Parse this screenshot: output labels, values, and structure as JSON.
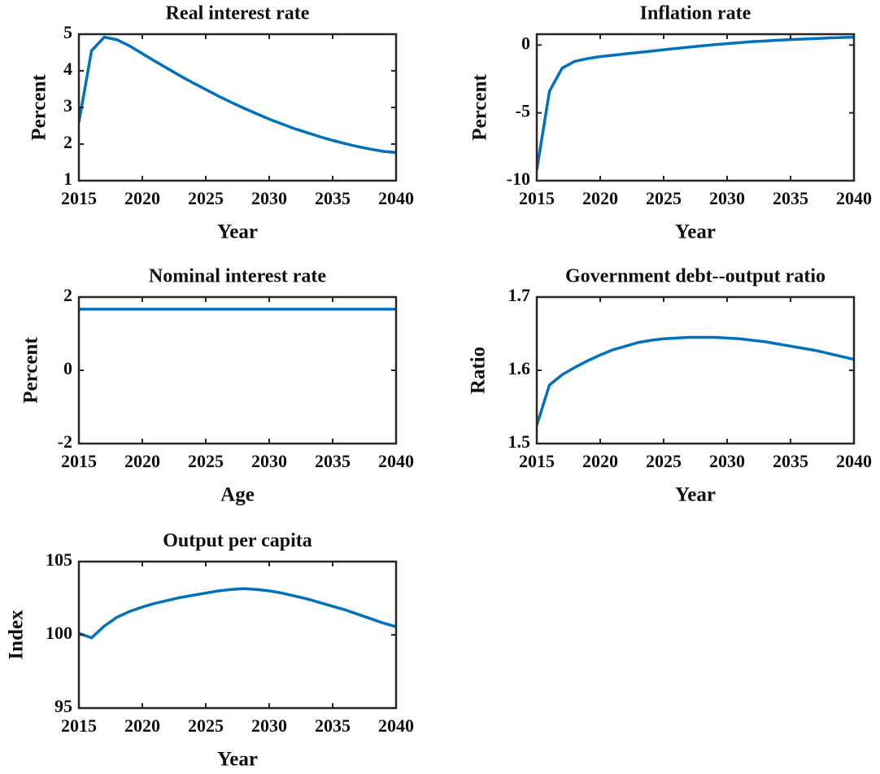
{
  "chart_data": [
    {
      "type": "line",
      "title": "Real interest rate",
      "x_label": "Year",
      "y_label": "Percent",
      "x": [
        2015,
        2016,
        2017,
        2018,
        2019,
        2020,
        2021,
        2022,
        2023,
        2024,
        2025,
        2026,
        2027,
        2028,
        2029,
        2030,
        2031,
        2032,
        2033,
        2034,
        2035,
        2036,
        2037,
        2038,
        2039,
        2040
      ],
      "series": [
        {
          "color": "#0072bd",
          "values": [
            2.6,
            4.55,
            4.92,
            4.85,
            4.68,
            4.47,
            4.26,
            4.06,
            3.86,
            3.67,
            3.49,
            3.31,
            3.14,
            2.98,
            2.83,
            2.68,
            2.55,
            2.42,
            2.31,
            2.2,
            2.1,
            2.01,
            1.93,
            1.86,
            1.8,
            1.77
          ]
        }
      ],
      "xlim": [
        2015,
        2040
      ],
      "xticks": [
        2015,
        2020,
        2025,
        2030,
        2035,
        2040
      ],
      "ylim": [
        1,
        5
      ],
      "yticks": [
        1,
        2,
        3,
        4,
        5
      ]
    },
    {
      "type": "line",
      "title": "Inflation rate",
      "x_label": "Year",
      "y_label": "Percent",
      "x": [
        2015,
        2016,
        2017,
        2018,
        2019,
        2020,
        2021,
        2022,
        2023,
        2024,
        2025,
        2026,
        2027,
        2028,
        2029,
        2030,
        2031,
        2032,
        2033,
        2034,
        2035,
        2036,
        2037,
        2038,
        2039,
        2040
      ],
      "series": [
        {
          "color": "#0072bd",
          "values": [
            -9.2,
            -3.4,
            -1.7,
            -1.2,
            -1.0,
            -0.85,
            -0.75,
            -0.65,
            -0.55,
            -0.45,
            -0.35,
            -0.25,
            -0.15,
            -0.06,
            0.03,
            0.1,
            0.18,
            0.25,
            0.3,
            0.36,
            0.4,
            0.44,
            0.48,
            0.52,
            0.55,
            0.58
          ]
        }
      ],
      "xlim": [
        2015,
        2040
      ],
      "xticks": [
        2015,
        2020,
        2025,
        2030,
        2035,
        2040
      ],
      "ylim": [
        -10,
        0.8
      ],
      "yticks": [
        -10,
        -5,
        0
      ]
    },
    {
      "type": "line",
      "title": "Nominal interest rate",
      "x_label": "Age",
      "y_label": "Percent",
      "x": [
        2015,
        2016,
        2017,
        2018,
        2019,
        2020,
        2021,
        2022,
        2023,
        2024,
        2025,
        2026,
        2027,
        2028,
        2029,
        2030,
        2031,
        2032,
        2033,
        2034,
        2035,
        2036,
        2037,
        2038,
        2039,
        2040
      ],
      "series": [
        {
          "color": "#0072bd",
          "values": [
            1.67,
            1.67,
            1.67,
            1.67,
            1.67,
            1.67,
            1.67,
            1.67,
            1.67,
            1.67,
            1.67,
            1.67,
            1.67,
            1.67,
            1.67,
            1.67,
            1.67,
            1.67,
            1.67,
            1.67,
            1.67,
            1.67,
            1.67,
            1.67,
            1.67,
            1.67
          ]
        }
      ],
      "xlim": [
        2015,
        2040
      ],
      "xticks": [
        2015,
        2020,
        2025,
        2030,
        2035,
        2040
      ],
      "ylim": [
        -2,
        2
      ],
      "yticks": [
        -2,
        0,
        2
      ]
    },
    {
      "type": "line",
      "title": "Government debt--output ratio",
      "x_label": "Year",
      "y_label": "Ratio",
      "x": [
        2015,
        2016,
        2017,
        2018,
        2019,
        2020,
        2021,
        2022,
        2023,
        2024,
        2025,
        2026,
        2027,
        2028,
        2029,
        2030,
        2031,
        2032,
        2033,
        2034,
        2035,
        2036,
        2037,
        2038,
        2039,
        2040
      ],
      "series": [
        {
          "color": "#0072bd",
          "values": [
            1.525,
            1.58,
            1.594,
            1.604,
            1.613,
            1.621,
            1.628,
            1.633,
            1.638,
            1.641,
            1.643,
            1.644,
            1.645,
            1.645,
            1.645,
            1.644,
            1.643,
            1.641,
            1.639,
            1.636,
            1.633,
            1.63,
            1.627,
            1.623,
            1.619,
            1.615
          ]
        }
      ],
      "xlim": [
        2015,
        2040
      ],
      "xticks": [
        2015,
        2020,
        2025,
        2030,
        2035,
        2040
      ],
      "ylim": [
        1.5,
        1.7
      ],
      "yticks": [
        1.5,
        1.6,
        1.7
      ]
    },
    {
      "type": "line",
      "title": "Output per capita",
      "x_label": "Year",
      "y_label": "Index",
      "x": [
        2015,
        2016,
        2017,
        2018,
        2019,
        2020,
        2021,
        2022,
        2023,
        2024,
        2025,
        2026,
        2027,
        2028,
        2029,
        2030,
        2031,
        2032,
        2033,
        2034,
        2035,
        2036,
        2037,
        2038,
        2039,
        2040
      ],
      "series": [
        {
          "color": "#0072bd",
          "values": [
            100.1,
            99.8,
            100.6,
            101.2,
            101.6,
            101.9,
            102.15,
            102.35,
            102.55,
            102.7,
            102.85,
            103.0,
            103.1,
            103.15,
            103.1,
            103.0,
            102.85,
            102.65,
            102.45,
            102.2,
            101.95,
            101.7,
            101.4,
            101.1,
            100.8,
            100.55
          ]
        }
      ],
      "xlim": [
        2015,
        2040
      ],
      "xticks": [
        2015,
        2020,
        2025,
        2030,
        2035,
        2040
      ],
      "ylim": [
        95,
        105
      ],
      "yticks": [
        95,
        100,
        105
      ]
    }
  ]
}
